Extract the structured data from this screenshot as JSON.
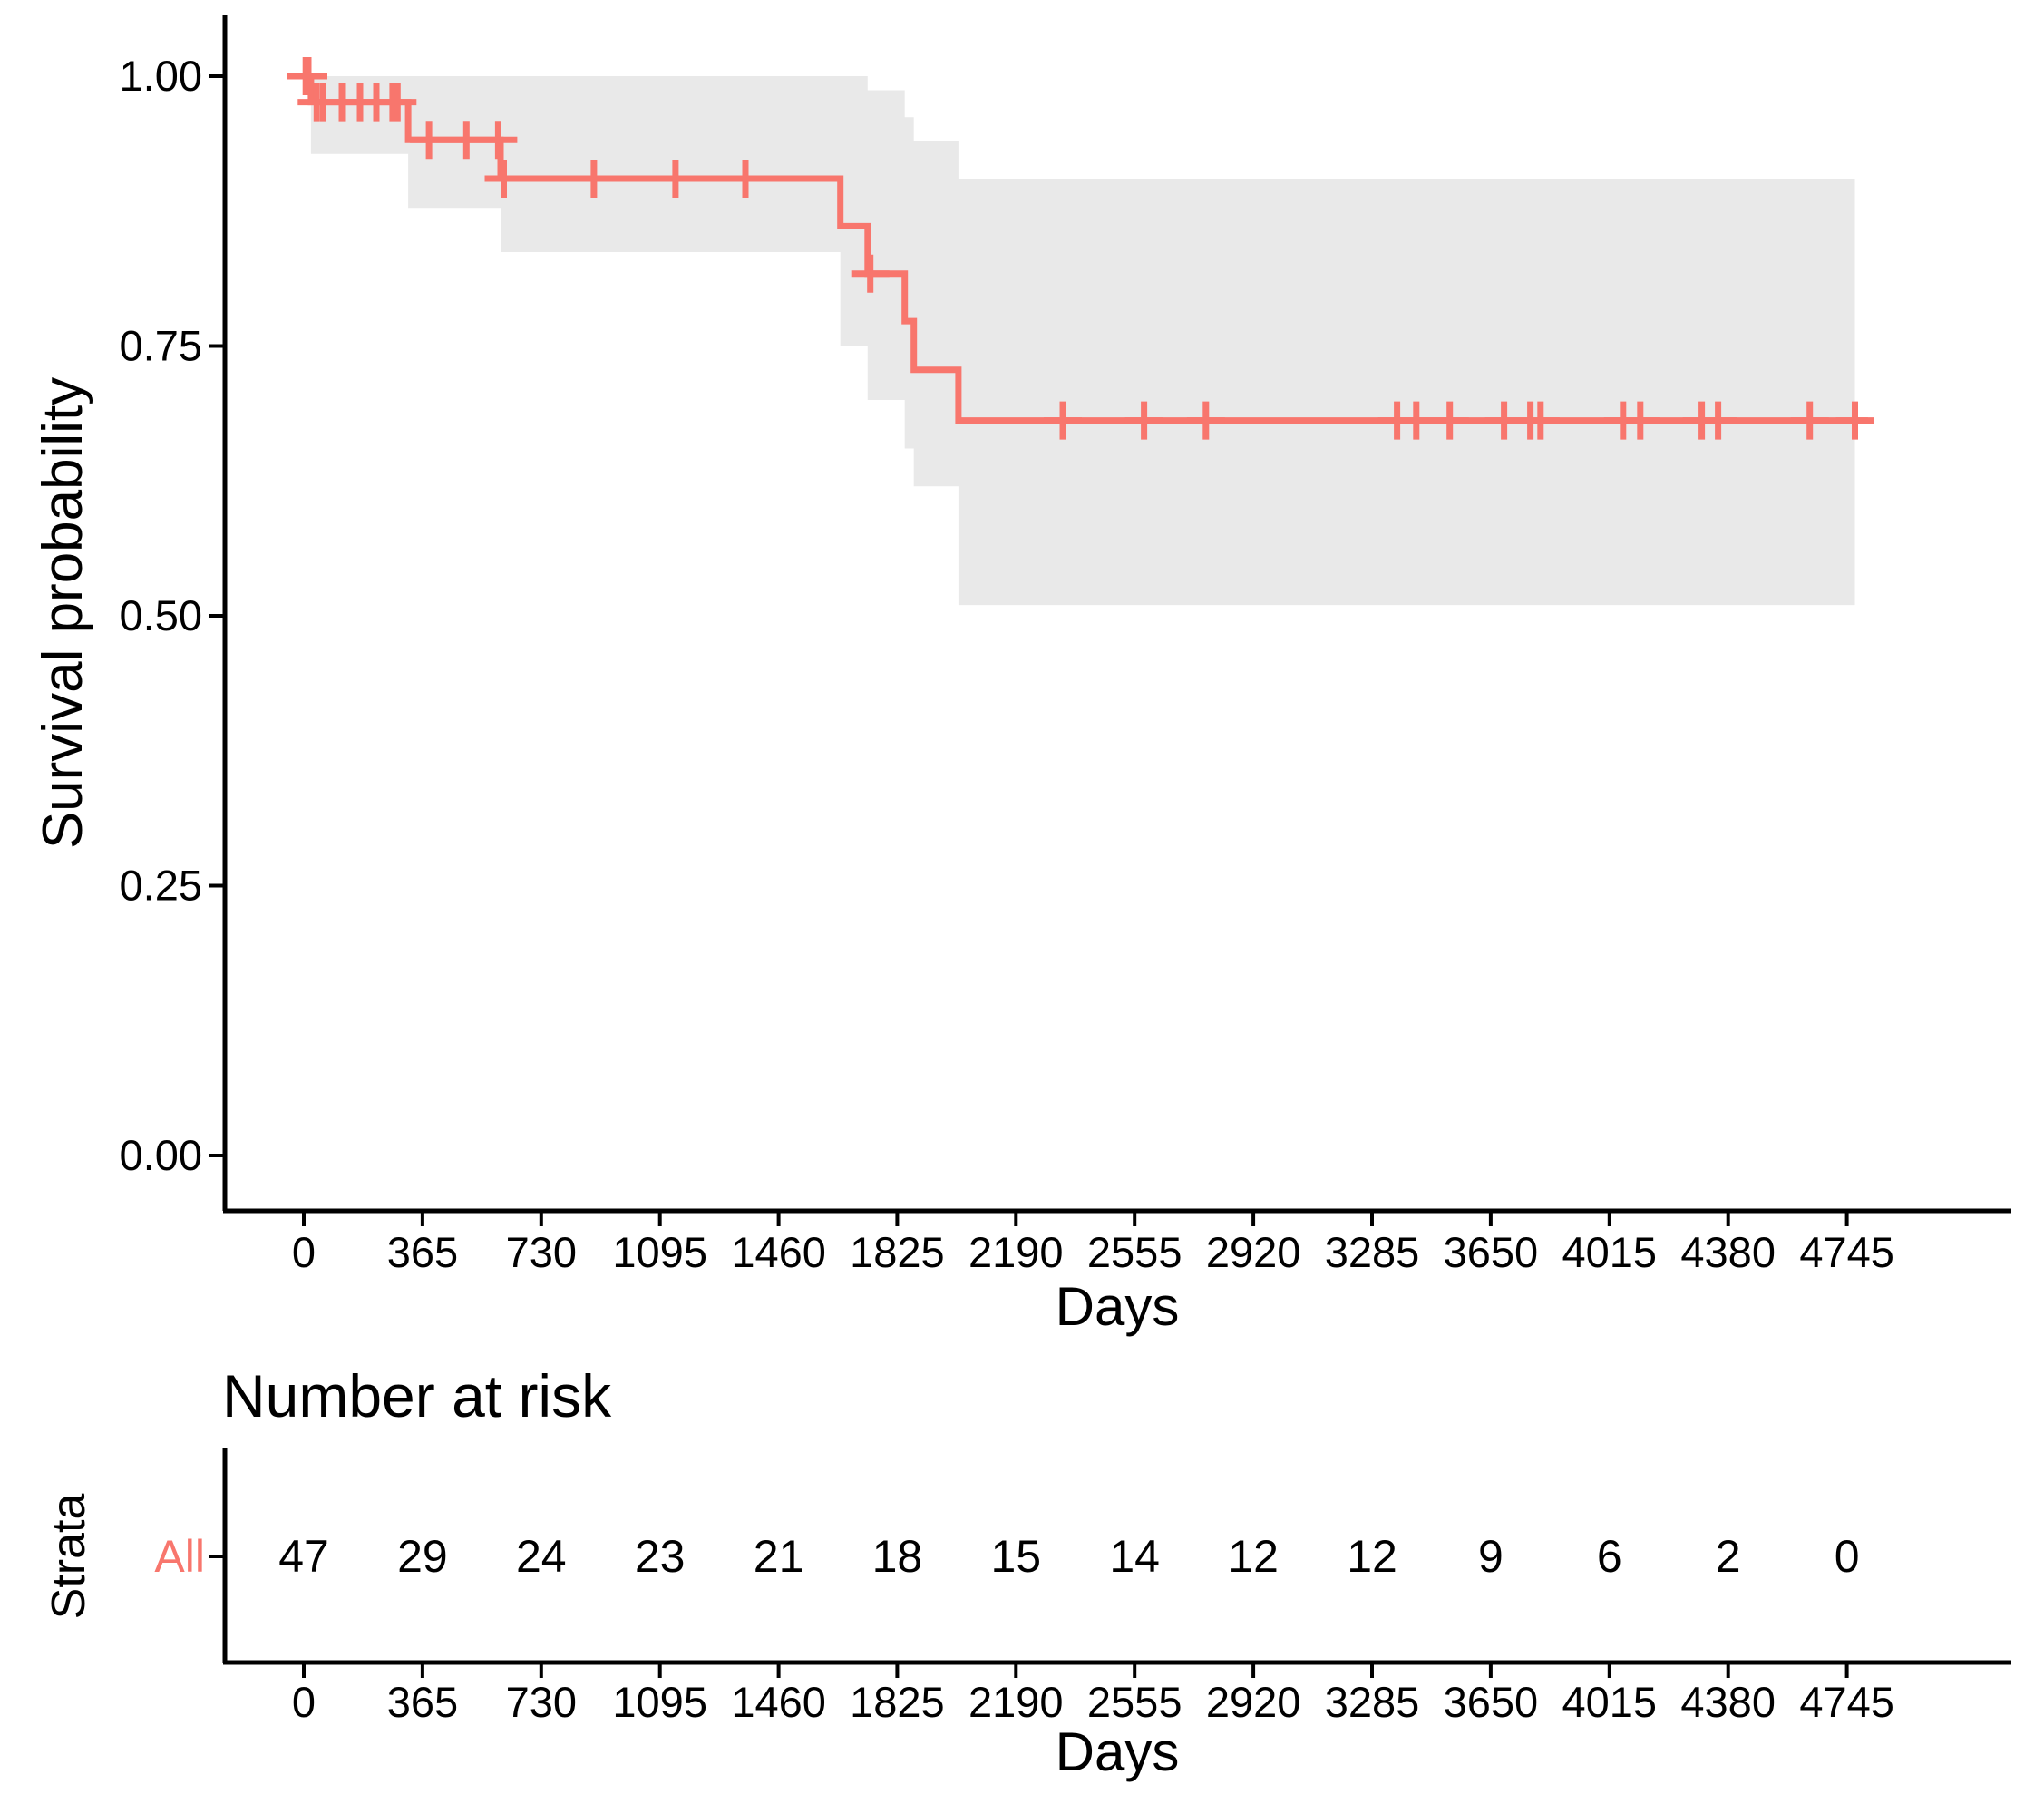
{
  "chart_data": {
    "type": "km_survival",
    "title": "",
    "xlabel": "Days",
    "ylabel": "Survival probability",
    "grid": false,
    "legend_position": "none",
    "xlim": [
      0,
      4900
    ],
    "ylim": [
      0,
      1
    ],
    "x_ticks": [
      0,
      365,
      730,
      1095,
      1460,
      1825,
      2190,
      2555,
      2920,
      3285,
      3650,
      4015,
      4380,
      4745
    ],
    "y_tick_values": [
      1.0,
      0.75,
      0.5,
      0.25,
      0.0
    ],
    "y_tick_labels": [
      "1.00",
      "0.75",
      "0.50",
      "0.25",
      "0.00"
    ],
    "colors": {
      "curve": "#F8766D",
      "band": "#E9E9E9",
      "axis": "#000000"
    },
    "series": [
      {
        "name": "All",
        "color": "#F8766D",
        "step_times": [
          0,
          22,
          321,
          605,
          1650,
          1734,
          1848,
          1876,
          2013
        ],
        "step_surv": [
          1.0,
          0.976,
          0.941,
          0.905,
          0.861,
          0.817,
          0.773,
          0.728,
          0.681
        ],
        "ci_upper": [
          1.0,
          1.0,
          1.0,
          1.0,
          1.0,
          0.987,
          0.962,
          0.94,
          0.905
        ],
        "ci_lower": [
          1.0,
          0.928,
          0.878,
          0.837,
          0.75,
          0.7,
          0.655,
          0.62,
          0.51
        ],
        "end_time": 4810,
        "band_end_time": 4770,
        "censors": [
          [
            6,
            1.0
          ],
          [
            14,
            1.0
          ],
          [
            40,
            0.976
          ],
          [
            60,
            0.976
          ],
          [
            117,
            0.976
          ],
          [
            173,
            0.976
          ],
          [
            223,
            0.976
          ],
          [
            273,
            0.976
          ],
          [
            288,
            0.976
          ],
          [
            385,
            0.941
          ],
          [
            500,
            0.941
          ],
          [
            598,
            0.941
          ],
          [
            615,
            0.905
          ],
          [
            892,
            0.905
          ],
          [
            1143,
            0.905
          ],
          [
            1358,
            0.905
          ],
          [
            1742,
            0.817
          ],
          [
            2334,
            0.681
          ],
          [
            2584,
            0.681
          ],
          [
            2774,
            0.681
          ],
          [
            3362,
            0.681
          ],
          [
            3421,
            0.681
          ],
          [
            3524,
            0.681
          ],
          [
            3691,
            0.681
          ],
          [
            3772,
            0.681
          ],
          [
            3803,
            0.681
          ],
          [
            4057,
            0.681
          ],
          [
            4110,
            0.681
          ],
          [
            4299,
            0.681
          ],
          [
            4349,
            0.681
          ],
          [
            4631,
            0.681
          ],
          [
            4770,
            0.681
          ]
        ]
      }
    ],
    "risk_table": {
      "title": "Number at risk",
      "ylabel": "Strata",
      "xlabel": "Days",
      "row_label": "All",
      "times": [
        0,
        365,
        730,
        1095,
        1460,
        1825,
        2190,
        2555,
        2920,
        3285,
        3650,
        4015,
        4380,
        4745
      ],
      "counts": [
        47,
        29,
        24,
        23,
        21,
        18,
        15,
        14,
        12,
        12,
        9,
        6,
        2,
        0
      ]
    }
  }
}
